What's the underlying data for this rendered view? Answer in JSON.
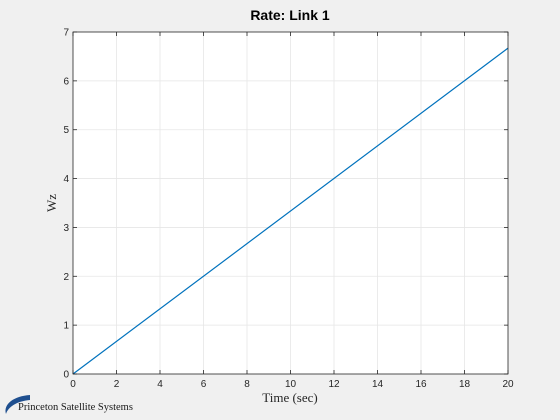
{
  "chart_data": {
    "type": "line",
    "title": "Rate: Link 1",
    "xlabel": "Time (sec)",
    "ylabel": "Wz",
    "xlim": [
      0,
      20
    ],
    "ylim": [
      0,
      7
    ],
    "xticks": [
      0,
      2,
      4,
      6,
      8,
      10,
      12,
      14,
      16,
      18,
      20
    ],
    "yticks": [
      0,
      1,
      2,
      3,
      4,
      5,
      6,
      7
    ],
    "grid": true,
    "series": [
      {
        "x": [
          0,
          20
        ],
        "y": [
          0,
          6.67
        ],
        "color": "#0072bd"
      }
    ]
  },
  "logo": {
    "text": "Princeton Satellite Systems",
    "color": "#1f4f8f"
  }
}
